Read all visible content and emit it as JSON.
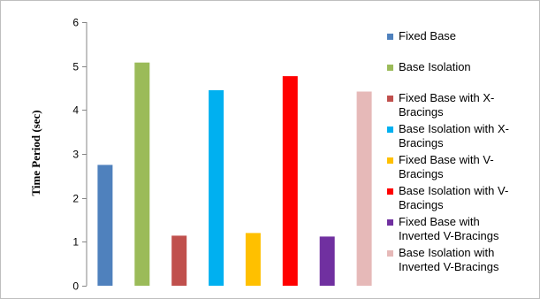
{
  "chart_data": {
    "type": "bar",
    "title": "",
    "xlabel": "",
    "ylabel": "Time Period (sec)",
    "ylim": [
      0,
      6
    ],
    "yticks": [
      0,
      1,
      2,
      3,
      4,
      5,
      6
    ],
    "grid": false,
    "legend_position": "right",
    "series": [
      {
        "name": "Fixed Base",
        "value": 2.75,
        "color": "#4f81bd"
      },
      {
        "name": "Base Isolation",
        "value": 5.08,
        "color": "#9bbb59"
      },
      {
        "name": "Fixed Base with X-Bracings",
        "value": 1.14,
        "color": "#c0504d"
      },
      {
        "name": "Base Isolation with X-Bracings",
        "value": 4.45,
        "color": "#00b0f0"
      },
      {
        "name": "Fixed Base with V-Bracings",
        "value": 1.2,
        "color": "#ffc000"
      },
      {
        "name": "Base Isolation with V-Bracings",
        "value": 4.77,
        "color": "#ff0000"
      },
      {
        "name": "Fixed Base with Inverted V-Bracings",
        "value": 1.12,
        "color": "#7030a0"
      },
      {
        "name": "Base Isolation with Inverted V-Bracings",
        "value": 4.42,
        "color": "#e6b9b8"
      }
    ],
    "legend_lines": [
      [
        "Fixed Base"
      ],
      [
        "Base Isolation"
      ],
      [
        "Fixed Base with X-",
        "Bracings"
      ],
      [
        "Base Isolation with X-",
        "Bracings"
      ],
      [
        "Fixed Base with V-",
        "Bracings"
      ],
      [
        "Base Isolation with V-",
        "Bracings"
      ],
      [
        "Fixed Base with",
        "Inverted V-Bracings"
      ],
      [
        "Base Isolation with",
        "Inverted V-Bracings"
      ]
    ]
  }
}
